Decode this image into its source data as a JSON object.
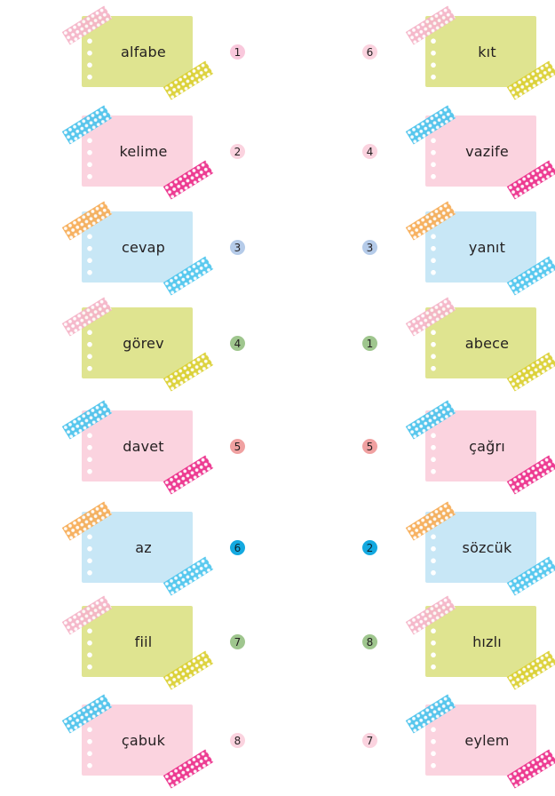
{
  "colors": {
    "card_green": "#dfe490",
    "card_pink": "#fbd3df",
    "card_blue": "#c8e7f6",
    "tape_pink": "#f5b4c8",
    "tape_yellow": "#dbd032",
    "tape_blue": "#4cc3ec",
    "tape_magenta": "#ec2f8b",
    "tape_orange": "#f7ad57",
    "tape_cyan": "#4fc6ee"
  },
  "left": [
    {
      "word": "alfabe",
      "number": "1",
      "badge": "#f9c8dc"
    },
    {
      "word": "kelime",
      "number": "2",
      "badge": "#fbd3df"
    },
    {
      "word": "cevap",
      "number": "3",
      "badge": "#b5cbe9"
    },
    {
      "word": "görev",
      "number": "4",
      "badge": "#9fc68e"
    },
    {
      "word": "davet",
      "number": "5",
      "badge": "#f0a1a1"
    },
    {
      "word": "az",
      "number": "6",
      "badge": "#14a9e0"
    },
    {
      "word": "fiil",
      "number": "7",
      "badge": "#9fc68e"
    },
    {
      "word": "çabuk",
      "number": "8",
      "badge": "#fbd3df"
    }
  ],
  "right": [
    {
      "word": "kıt",
      "number": "6",
      "badge": "#fbd3df"
    },
    {
      "word": "vazife",
      "number": "4",
      "badge": "#fbd3df"
    },
    {
      "word": "yanıt",
      "number": "3",
      "badge": "#b5cbe9"
    },
    {
      "word": "abece",
      "number": "1",
      "badge": "#9fc68e"
    },
    {
      "word": "çağrı",
      "number": "5",
      "badge": "#f0a1a1"
    },
    {
      "word": "sözcük",
      "number": "2",
      "badge": "#14a9e0"
    },
    {
      "word": "hızlı",
      "number": "8",
      "badge": "#9fc68e"
    },
    {
      "word": "eylem",
      "number": "7",
      "badge": "#fbd3df"
    }
  ]
}
